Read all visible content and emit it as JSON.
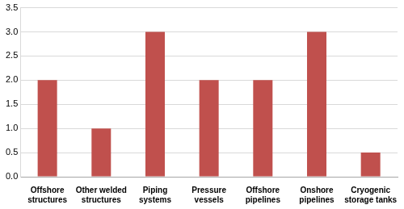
{
  "chart_data": {
    "type": "bar",
    "categories": [
      "Offshore structures",
      "Other welded structures",
      "Piping systems",
      "Pressure vessels",
      "Offshore pipelines",
      "Onshore pipelines",
      "Cryogenic storage tanks"
    ],
    "values": [
      2,
      1,
      3,
      2,
      2,
      3,
      0.5
    ],
    "color": "#c0504d",
    "ylim": [
      0,
      3.5
    ],
    "yticks": [
      {
        "value": 0,
        "label": "0.0"
      },
      {
        "value": 0.5,
        "label": "0.5"
      },
      {
        "value": 1,
        "label": "1.0"
      },
      {
        "value": 1.5,
        "label": "1.5"
      },
      {
        "value": 2,
        "label": "2.0"
      },
      {
        "value": 2.5,
        "label": "2.5"
      },
      {
        "value": 3,
        "label": "3.0"
      },
      {
        "value": 3.5,
        "label": "3.5"
      }
    ],
    "grid": true
  }
}
